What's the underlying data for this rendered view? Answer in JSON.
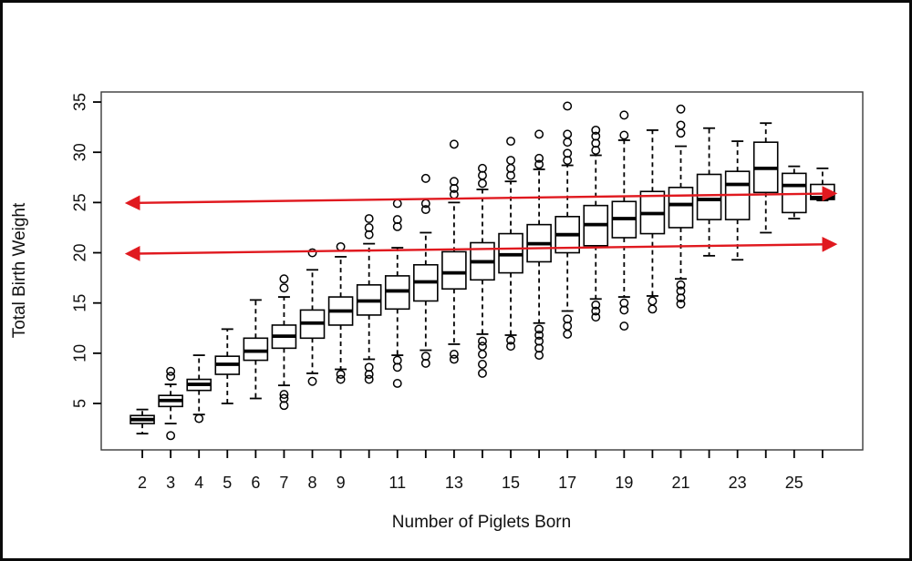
{
  "figure": {
    "xlabel": "Number of Piglets Born",
    "ylabel": "Total Birth Weight"
  },
  "chart_data": {
    "type": "boxplot",
    "title": "",
    "xlabel": "Number of Piglets Born",
    "ylabel": "Total Birth Weight",
    "x_tick_positions": [
      2,
      3,
      4,
      5,
      6,
      7,
      8,
      9,
      10,
      11,
      12,
      13,
      14,
      15,
      16,
      17,
      18,
      19,
      20,
      21,
      22,
      23,
      24,
      25,
      26
    ],
    "x_labeled_ticks": [
      2,
      3,
      4,
      5,
      6,
      7,
      8,
      9,
      11,
      13,
      15,
      17,
      19,
      21,
      23,
      25
    ],
    "y_ticks": [
      5,
      10,
      15,
      20,
      25,
      30,
      35
    ],
    "xlim": [
      0.55,
      27.42
    ],
    "ylim": [
      0.38,
      36.0
    ],
    "grid": false,
    "legend": "none",
    "box_fill": "#ffffff",
    "box_color": "#000000",
    "arrow_color": "#e0191f",
    "boxes": [
      {
        "x": 2,
        "low": 2.0,
        "q1": 3.0,
        "median": 3.4,
        "q3": 3.8,
        "high": 4.4,
        "outliers_low": [],
        "outliers_high": []
      },
      {
        "x": 3,
        "low": 3.0,
        "q1": 4.7,
        "median": 5.3,
        "q3": 5.8,
        "high": 6.9,
        "outliers_low": [
          1.8
        ],
        "outliers_high": [
          7.7,
          8.2
        ]
      },
      {
        "x": 4,
        "low": 3.9,
        "q1": 6.3,
        "median": 6.9,
        "q3": 7.4,
        "high": 9.8,
        "outliers_low": [
          3.5
        ],
        "outliers_high": []
      },
      {
        "x": 5,
        "low": 5.0,
        "q1": 7.9,
        "median": 8.9,
        "q3": 9.7,
        "high": 12.4,
        "outliers_low": [],
        "outliers_high": []
      },
      {
        "x": 6,
        "low": 5.5,
        "q1": 9.3,
        "median": 10.2,
        "q3": 11.5,
        "high": 15.3,
        "outliers_low": [],
        "outliers_high": []
      },
      {
        "x": 7,
        "low": 6.8,
        "q1": 10.5,
        "median": 11.7,
        "q3": 12.8,
        "high": 15.6,
        "outliers_low": [
          4.8,
          5.5,
          5.9
        ],
        "outliers_high": [
          16.5,
          17.4
        ]
      },
      {
        "x": 8,
        "low": 8.0,
        "q1": 11.5,
        "median": 13.0,
        "q3": 14.3,
        "high": 18.3,
        "outliers_low": [
          7.2
        ],
        "outliers_high": [
          20.0
        ]
      },
      {
        "x": 9,
        "low": 8.4,
        "q1": 12.8,
        "median": 14.2,
        "q3": 15.6,
        "high": 19.6,
        "outliers_low": [
          7.4,
          7.9
        ],
        "outliers_high": [
          20.6
        ]
      },
      {
        "x": 10,
        "low": 9.4,
        "q1": 13.8,
        "median": 15.2,
        "q3": 16.8,
        "high": 20.9,
        "outliers_low": [
          7.4,
          7.9,
          8.6
        ],
        "outliers_high": [
          21.8,
          22.5,
          23.4
        ]
      },
      {
        "x": 11,
        "low": 9.8,
        "q1": 14.4,
        "median": 16.2,
        "q3": 17.7,
        "high": 20.5,
        "outliers_low": [
          7.0,
          8.6,
          9.3
        ],
        "outliers_high": [
          22.6,
          23.3,
          24.9
        ]
      },
      {
        "x": 12,
        "low": 10.3,
        "q1": 15.2,
        "median": 17.1,
        "q3": 18.8,
        "high": 22.0,
        "outliers_low": [
          9.0,
          9.7
        ],
        "outliers_high": [
          24.3,
          24.9,
          27.4
        ]
      },
      {
        "x": 13,
        "low": 10.9,
        "q1": 16.4,
        "median": 18.0,
        "q3": 20.1,
        "high": 25.0,
        "outliers_low": [
          9.4,
          9.9
        ],
        "outliers_high": [
          25.8,
          26.4,
          27.1,
          30.8
        ]
      },
      {
        "x": 14,
        "low": 11.9,
        "q1": 17.3,
        "median": 19.1,
        "q3": 21.0,
        "high": 26.3,
        "outliers_low": [
          8.0,
          8.9,
          9.9,
          10.7,
          11.2
        ],
        "outliers_high": [
          26.9,
          27.7,
          28.4
        ]
      },
      {
        "x": 15,
        "low": 11.8,
        "q1": 18.0,
        "median": 19.8,
        "q3": 21.9,
        "high": 27.1,
        "outliers_low": [
          10.7,
          11.3
        ],
        "outliers_high": [
          27.7,
          28.4,
          29.2,
          31.1
        ]
      },
      {
        "x": 16,
        "low": 13.0,
        "q1": 19.1,
        "median": 20.9,
        "q3": 22.8,
        "high": 28.3,
        "outliers_low": [
          9.8,
          10.5,
          11.2,
          11.8,
          12.4
        ],
        "outliers_high": [
          28.8,
          29.4,
          31.8
        ]
      },
      {
        "x": 17,
        "low": 14.2,
        "q1": 20.0,
        "median": 21.8,
        "q3": 23.6,
        "high": 28.7,
        "outliers_low": [
          11.9,
          12.7,
          13.4
        ],
        "outliers_high": [
          29.2,
          29.9,
          31.0,
          31.8,
          34.6
        ]
      },
      {
        "x": 18,
        "low": 15.4,
        "q1": 20.7,
        "median": 22.8,
        "q3": 24.7,
        "high": 29.7,
        "outliers_low": [
          13.6,
          14.2,
          14.8
        ],
        "outliers_high": [
          30.2,
          30.9,
          31.6,
          32.2
        ]
      },
      {
        "x": 19,
        "low": 15.6,
        "q1": 21.5,
        "median": 23.4,
        "q3": 25.1,
        "high": 31.2,
        "outliers_low": [
          12.7,
          14.3,
          15.0
        ],
        "outliers_high": [
          31.7,
          33.7
        ]
      },
      {
        "x": 20,
        "low": 15.7,
        "q1": 21.9,
        "median": 23.9,
        "q3": 26.1,
        "high": 32.2,
        "outliers_low": [
          14.4,
          15.2
        ],
        "outliers_high": []
      },
      {
        "x": 21,
        "low": 17.4,
        "q1": 22.5,
        "median": 24.8,
        "q3": 26.5,
        "high": 30.6,
        "outliers_low": [
          14.9,
          15.5,
          16.2,
          16.8
        ],
        "outliers_high": [
          31.9,
          32.7,
          34.3
        ]
      },
      {
        "x": 22,
        "low": 19.7,
        "q1": 23.3,
        "median": 25.3,
        "q3": 27.8,
        "high": 32.4,
        "outliers_low": [],
        "outliers_high": []
      },
      {
        "x": 23,
        "low": 19.3,
        "q1": 23.3,
        "median": 26.8,
        "q3": 28.1,
        "high": 31.1,
        "outliers_low": [],
        "outliers_high": []
      },
      {
        "x": 24,
        "low": 22.0,
        "q1": 26.0,
        "median": 28.4,
        "q3": 31.0,
        "high": 32.9,
        "outliers_low": [],
        "outliers_high": []
      },
      {
        "x": 25,
        "low": 23.4,
        "q1": 24.0,
        "median": 26.7,
        "q3": 27.9,
        "high": 28.6,
        "outliers_low": [],
        "outliers_high": []
      },
      {
        "x": 26,
        "low": 25.2,
        "q1": 25.3,
        "median": 25.5,
        "q3": 26.8,
        "high": 28.4,
        "outliers_low": [],
        "outliers_high": []
      }
    ],
    "arrows": [
      {
        "name": "upper-reference-arrow",
        "x1": 1.49,
        "y1": 24.95,
        "x2": 26.42,
        "y2": 25.9
      },
      {
        "name": "lower-reference-arrow",
        "x1": 1.49,
        "y1": 19.9,
        "x2": 26.42,
        "y2": 20.85
      }
    ]
  }
}
